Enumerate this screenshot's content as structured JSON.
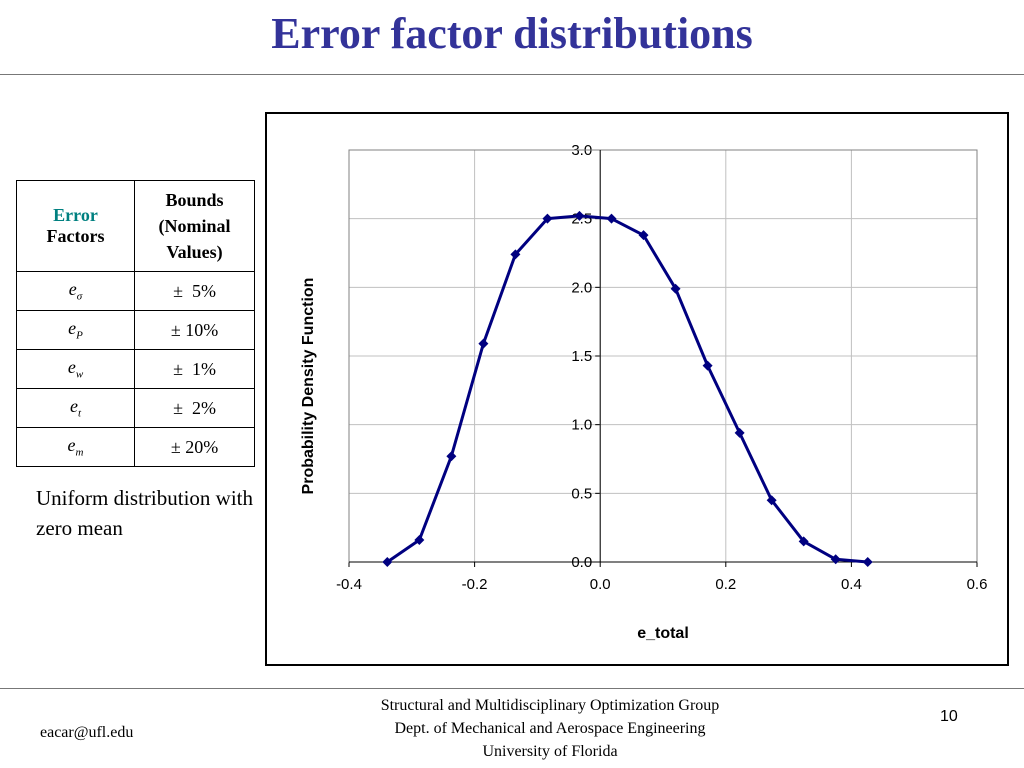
{
  "slide": {
    "title": "Error factor distributions"
  },
  "table": {
    "header_error_word": "Error",
    "header_factors_word": "Factors",
    "header_bounds": "Bounds (Nominal Values)",
    "rows": [
      {
        "base": "e",
        "sub": "σ",
        "bound": "±  5%"
      },
      {
        "base": "e",
        "sub": "P",
        "bound": "± 10%"
      },
      {
        "base": "e",
        "sub": "w",
        "bound": "±  1%"
      },
      {
        "base": "e",
        "sub": "t",
        "bound": "±  2%"
      },
      {
        "base": "e",
        "sub": "m",
        "bound": "± 20%"
      }
    ]
  },
  "note": "Uniform distribution with zero mean",
  "footer": {
    "line1": "Structural and Multidisciplinary Optimization Group",
    "line2": "Dept. of Mechanical and Aerospace Engineering",
    "line3": "University of Florida",
    "email": "eacar@ufl.edu",
    "page_number": "10"
  },
  "colors": {
    "title": "#333399",
    "series": "#000080",
    "teal": "#008080",
    "gridline": "#c0c0c0"
  },
  "chart_data": {
    "type": "line",
    "xlabel": "e_total",
    "ylabel": "Probability Density Function",
    "xlim": [
      -0.4,
      0.6
    ],
    "ylim": [
      0,
      3.0
    ],
    "x_ticks": [
      "-0.4",
      "-0.2",
      "0.0",
      "0.2",
      "0.4",
      "0.6"
    ],
    "y_ticks": [
      "0.0",
      "0.5",
      "1.0",
      "1.5",
      "2.0",
      "2.5",
      "3.0"
    ],
    "grid": true,
    "series": [
      {
        "marker": "diamond",
        "points": [
          {
            "x": -0.339,
            "y": 0.0
          },
          {
            "x": -0.288,
            "y": 0.16
          },
          {
            "x": -0.237,
            "y": 0.77
          },
          {
            "x": -0.186,
            "y": 1.59
          },
          {
            "x": -0.135,
            "y": 2.24
          },
          {
            "x": -0.084,
            "y": 2.5
          },
          {
            "x": -0.033,
            "y": 2.52
          },
          {
            "x": 0.018,
            "y": 2.5
          },
          {
            "x": 0.069,
            "y": 2.38
          },
          {
            "x": 0.12,
            "y": 1.99
          },
          {
            "x": 0.171,
            "y": 1.43
          },
          {
            "x": 0.222,
            "y": 0.94
          },
          {
            "x": 0.273,
            "y": 0.45
          },
          {
            "x": 0.324,
            "y": 0.15
          },
          {
            "x": 0.375,
            "y": 0.02
          },
          {
            "x": 0.426,
            "y": 0.0
          }
        ]
      }
    ]
  }
}
